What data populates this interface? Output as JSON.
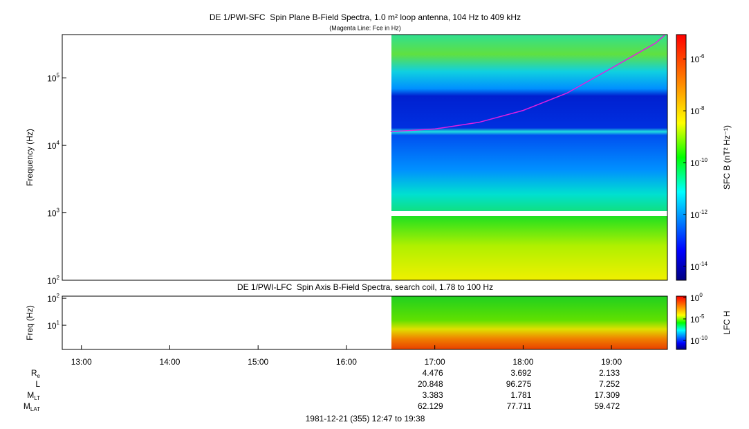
{
  "chart_data": [
    {
      "type": "spectrogram",
      "title": "DE 1/PWI-SFC  Spin Plane B-Field Spectra, 1.0 m² loop antenna, 104 Hz to 409 kHz",
      "subtitle": "(Magenta Line: Fce in Hz)",
      "y_label": "Frequency (Hz)",
      "colorbar_label": "SFC B (nT² Hz⁻¹)",
      "xlim": [
        12.783,
        19.633
      ],
      "ylim": [
        100,
        440000
      ],
      "y_scale": "log",
      "yticks": [
        {
          "value": 100,
          "label": "10",
          "exp": "2"
        },
        {
          "value": 1000,
          "label": "10",
          "exp": "3"
        },
        {
          "value": 10000,
          "label": "10",
          "exp": "4"
        },
        {
          "value": 100000,
          "label": "10",
          "exp": "5"
        }
      ],
      "zlim": [
        2.9e-15,
        8.7e-06
      ],
      "z_scale": "log",
      "zticks": [
        {
          "value": 1e-14,
          "label": "10",
          "exp": "-14"
        },
        {
          "value": 1e-12,
          "label": "10",
          "exp": "-12"
        },
        {
          "value": 1e-10,
          "label": "10",
          "exp": "-10"
        },
        {
          "value": 1e-08,
          "label": "10",
          "exp": "-8"
        },
        {
          "value": 1e-06,
          "label": "10",
          "exp": "-6"
        }
      ],
      "series": [
        {
          "color": "#e020e0",
          "x": [
            16.5,
            17,
            17.5,
            18,
            18.5,
            19,
            19.5,
            19.6
          ],
          "values": [
            16000,
            17500,
            22000,
            33000,
            60000,
            140000,
            330000,
            430000
          ]
        }
      ]
    },
    {
      "type": "spectrogram",
      "title": "DE 1/PWI-LFC  Spin Axis B-Field Spectra, search coil, 1.78 to 100 Hz",
      "y_label": "Freq (Hz)",
      "colorbar_label": "LFC H",
      "xlim": [
        12.783,
        19.633
      ],
      "xticks": [
        {
          "value": 13,
          "label": "13:00"
        },
        {
          "value": 14,
          "label": "14:00"
        },
        {
          "value": 15,
          "label": "15:00"
        },
        {
          "value": 16,
          "label": "16:00"
        },
        {
          "value": 17,
          "label": "17:00"
        },
        {
          "value": 18,
          "label": "18:00"
        },
        {
          "value": 19,
          "label": "19:00"
        }
      ],
      "ylim": [
        1.27,
        120
      ],
      "y_scale": "log",
      "yticks": [
        {
          "value": 10,
          "label": "10",
          "exp": "1"
        },
        {
          "value": 100,
          "label": "10",
          "exp": "2"
        }
      ],
      "zlim": [
        8e-13,
        2
      ],
      "z_scale": "log",
      "zticks": [
        {
          "value": 1e-10,
          "label": "10",
          "exp": "-10"
        },
        {
          "value": 1e-05,
          "label": "10",
          "exp": "-5"
        },
        {
          "value": 1,
          "label": "10",
          "exp": "0"
        }
      ]
    }
  ],
  "ephemeris": {
    "labels": [
      {
        "text": "R",
        "sub": "e"
      },
      {
        "text": "L",
        "sub": ""
      },
      {
        "text": "M",
        "sub": "LT"
      },
      {
        "text": "M",
        "sub": "LAT"
      }
    ],
    "columns": [
      17,
      18,
      19
    ],
    "rows": [
      [
        "4.476",
        "3.692",
        "2.133"
      ],
      [
        "20.848",
        "96.275",
        "7.252"
      ],
      [
        "3.383",
        "1.781",
        "17.309"
      ],
      [
        "62.129",
        "77.711",
        "59.472"
      ]
    ]
  },
  "footer": "1981-12-21 (355) 12:47 to 19:38"
}
